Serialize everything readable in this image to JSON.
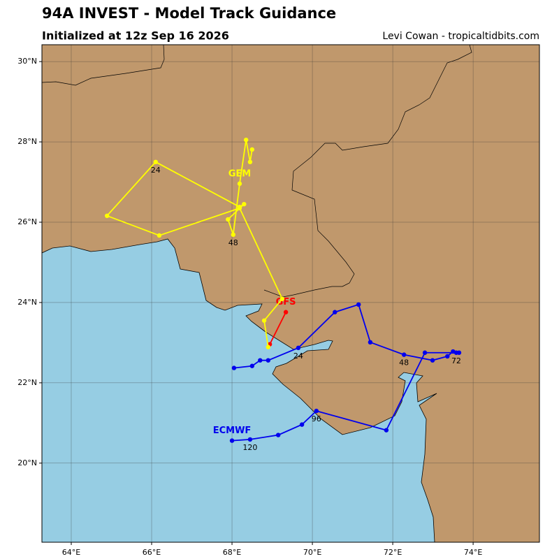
{
  "chart_data": {
    "type": "track",
    "title": "94A INVEST - Model Track Guidance",
    "subtitle": "Initialized at 12z Sep 16 2026",
    "credit": "Levi Cowan - tropicaltidbits.com",
    "xlim": [
      63.27,
      75.65
    ],
    "ylim": [
      18.03,
      30.42
    ],
    "xticks": [
      {
        "value": 64,
        "label": "64°E"
      },
      {
        "value": 66,
        "label": "66°E"
      },
      {
        "value": 68,
        "label": "68°E"
      },
      {
        "value": 70,
        "label": "70°E"
      },
      {
        "value": 72,
        "label": "72°E"
      },
      {
        "value": 74,
        "label": "74°E"
      }
    ],
    "yticks": [
      {
        "value": 20,
        "label": "20°N"
      },
      {
        "value": 22,
        "label": "22°N"
      },
      {
        "value": 24,
        "label": "24°N"
      },
      {
        "value": 26,
        "label": "26°N"
      },
      {
        "value": 28,
        "label": "28°N"
      },
      {
        "value": 30,
        "label": "30°N"
      }
    ],
    "grid": true,
    "series": [
      {
        "name": "GFS",
        "color": "#ff0000",
        "x": [
          69.34,
          68.94
        ],
        "values": [
          23.76,
          22.96
        ],
        "point_labels": [
          null,
          null
        ]
      },
      {
        "name": "GEM",
        "color": "#ffff00",
        "x": [
          68.9,
          68.8,
          69.25,
          68.19,
          66.19,
          64.89,
          66.1,
          68.19,
          68.3,
          67.9,
          68.03,
          68.19,
          68.35,
          68.45,
          68.5
        ],
        "values": [
          22.89,
          23.55,
          24.09,
          26.35,
          25.67,
          26.16,
          27.5,
          26.38,
          26.45,
          26.07,
          25.69,
          26.96,
          28.05,
          27.5,
          27.81
        ],
        "point_labels": [
          null,
          null,
          null,
          null,
          null,
          null,
          "24",
          null,
          null,
          null,
          "48",
          null,
          null,
          null,
          null
        ]
      },
      {
        "name": "ECMWF",
        "color": "#0000ee",
        "x": [
          68.05,
          68.5,
          68.7,
          68.9,
          69.65,
          70.56,
          71.15,
          71.44,
          72.28,
          72.99,
          73.36,
          73.5,
          73.58,
          73.65,
          72.8,
          71.84,
          70.1,
          69.74,
          69.15,
          68.45,
          68.0
        ],
        "values": [
          22.37,
          22.42,
          22.56,
          22.56,
          22.87,
          23.76,
          23.95,
          23.01,
          22.7,
          22.56,
          22.66,
          22.78,
          22.75,
          22.75,
          22.75,
          20.82,
          21.3,
          20.96,
          20.7,
          20.59,
          20.56
        ],
        "point_labels": [
          null,
          null,
          null,
          null,
          "24",
          null,
          null,
          null,
          "48",
          null,
          null,
          null,
          "72",
          null,
          null,
          null,
          "96",
          null,
          null,
          "120",
          null
        ]
      }
    ]
  }
}
